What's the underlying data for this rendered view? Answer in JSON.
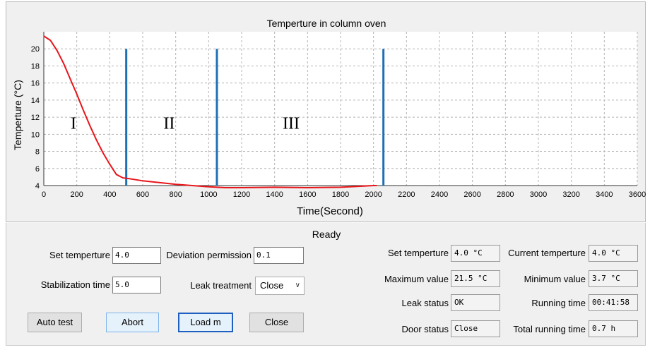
{
  "chart_data": {
    "type": "line",
    "title": "Temperture in column oven",
    "xlabel": "Time(Second)",
    "ylabel": "Temperture (°C)",
    "xlim": [
      0,
      3600
    ],
    "ylim": [
      4,
      20
    ],
    "grid": true,
    "x_ticks": [
      "0",
      "200",
      "400",
      "600",
      "800",
      "1000",
      "1200",
      "1400",
      "1600",
      "1800",
      "2000",
      "2200",
      "2400",
      "2600",
      "2800",
      "3000",
      "3200",
      "3400",
      "3600"
    ],
    "y_ticks": [
      "4",
      "6",
      "8",
      "10",
      "12",
      "14",
      "16",
      "18",
      "20"
    ],
    "series": [
      {
        "color": "#e8161b",
        "x": [
          0,
          40,
          80,
          120,
          160,
          200,
          240,
          280,
          320,
          360,
          400,
          440,
          480,
          520,
          600,
          700,
          800,
          900,
          1000,
          1100,
          1200,
          1400,
          1600,
          1800,
          1900,
          2000,
          2020
        ],
        "y": [
          21.5,
          21.0,
          19.8,
          18.3,
          16.5,
          14.7,
          12.8,
          11.0,
          9.3,
          7.8,
          6.5,
          5.3,
          4.9,
          4.8,
          4.55,
          4.35,
          4.15,
          4.0,
          3.85,
          3.75,
          3.75,
          3.8,
          3.75,
          3.8,
          3.9,
          4.0,
          4.0
        ]
      }
    ],
    "markers": [
      {
        "x": 500,
        "color": "#1f6fb5"
      },
      {
        "x": 1050,
        "color": "#1f6fb5"
      },
      {
        "x": 2060,
        "color": "#1f6fb5"
      }
    ],
    "region_labels": [
      {
        "text": "I",
        "x": 180,
        "y": 11.3
      },
      {
        "text": "II",
        "x": 760,
        "y": 11.3
      },
      {
        "text": "III",
        "x": 1500,
        "y": 11.3
      }
    ]
  },
  "status": "Ready",
  "left": {
    "set_temp_label": "Set temperture",
    "set_temp_value": "4.0",
    "deviation_label": "Deviation permission",
    "deviation_value": "0.1",
    "stabilization_label": "Stabilization time",
    "stabilization_value": "5.0",
    "leak_treatment_label": "Leak treatment",
    "leak_treatment_value": "Close"
  },
  "buttons": {
    "auto_test": "Auto test",
    "abort": "Abort",
    "load": "Load m",
    "close": "Close"
  },
  "right": {
    "set_temp_label": "Set temperture",
    "set_temp_value": "4.0 °C",
    "current_temp_label": "Current temperture",
    "current_temp_value": "4.0 °C",
    "max_label": "Maximum value",
    "max_value": "21.5 °C",
    "min_label": "Minimum value",
    "min_value": "3.7 °C",
    "leak_status_label": "Leak status",
    "leak_status_value": "OK",
    "running_time_label": "Running time",
    "running_time_value": "00:41:58",
    "door_status_label": "Door status",
    "door_status_value": "Close",
    "total_running_label": "Total running time",
    "total_running_value": "0.7 h"
  },
  "colors": {
    "curve": "#e8161b",
    "marker": "#1f6fb5",
    "grid": "#b4b4b4"
  }
}
